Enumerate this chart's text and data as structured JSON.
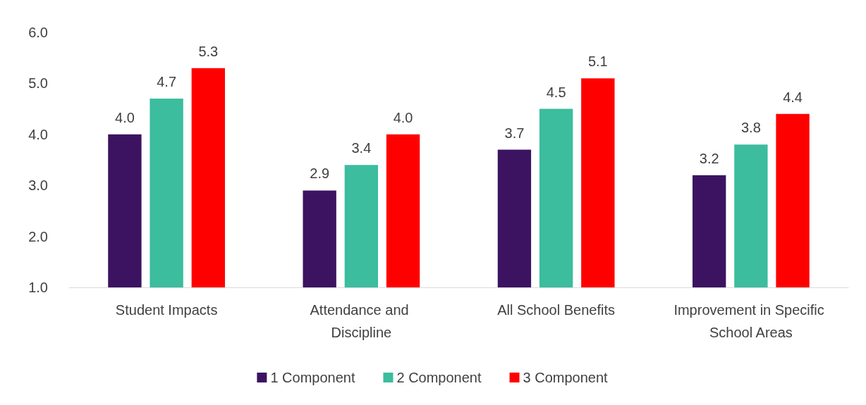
{
  "chart_data": {
    "type": "bar",
    "categories": [
      "Student Impacts",
      "Attendance and Discipline",
      "All School Benefits",
      "Improvement in Specific School Areas"
    ],
    "series": [
      {
        "name": "1 Component",
        "color": "#3c1361",
        "values": [
          4.0,
          2.9,
          3.7,
          3.2
        ],
        "value_labels": [
          "4.0",
          "2.9",
          "3.7",
          "3.2"
        ]
      },
      {
        "name": "2 Component",
        "color": "#3bbd9e",
        "values": [
          4.7,
          3.4,
          4.5,
          3.8
        ],
        "value_labels": [
          "4.7",
          "3.4",
          "4.5",
          "3.8"
        ]
      },
      {
        "name": "3 Component",
        "color": "#ff0000",
        "values": [
          5.3,
          4.0,
          5.1,
          4.4
        ],
        "value_labels": [
          "5.3",
          "4.0",
          "5.1",
          "4.4"
        ]
      }
    ],
    "ylim": [
      1,
      6
    ],
    "yticks": [
      {
        "value": 1,
        "label": "1.0"
      },
      {
        "value": 2,
        "label": "2.0"
      },
      {
        "value": 3,
        "label": "3.0"
      },
      {
        "value": 4,
        "label": "4.0"
      },
      {
        "value": 5,
        "label": "5.0"
      },
      {
        "value": 6,
        "label": "6.0"
      }
    ],
    "legend": "bottom",
    "grid": false
  }
}
